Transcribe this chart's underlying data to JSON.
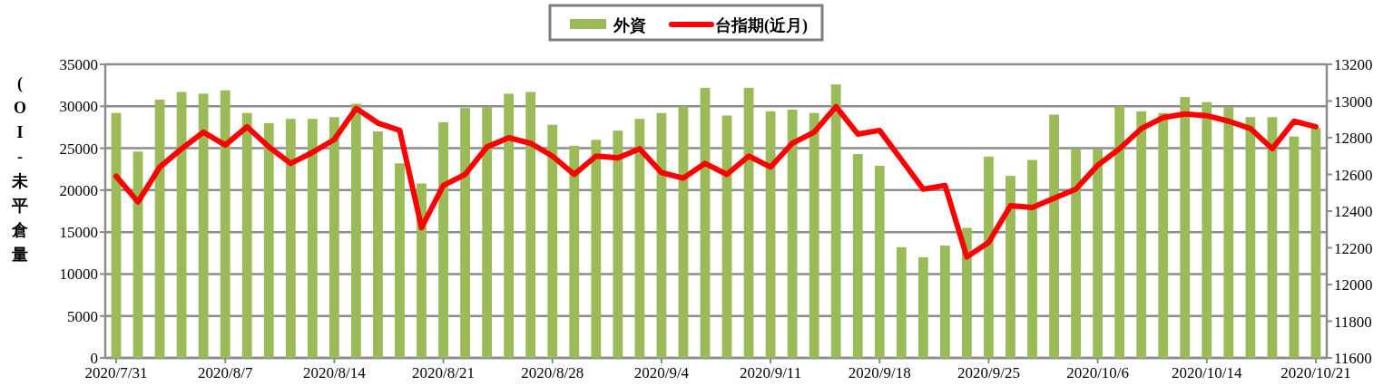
{
  "chart_data": {
    "type": "bar",
    "ylabel": "(OI-未平倉量",
    "categories": [
      "2020/7/31",
      null,
      null,
      null,
      null,
      "2020/8/7",
      null,
      null,
      null,
      null,
      "2020/8/14",
      null,
      null,
      null,
      null,
      "2020/8/21",
      null,
      null,
      null,
      null,
      "2020/8/28",
      null,
      null,
      null,
      null,
      "2020/9/4",
      null,
      null,
      null,
      null,
      "2020/9/11",
      null,
      null,
      null,
      null,
      "2020/9/18",
      null,
      null,
      null,
      null,
      "2020/9/25",
      null,
      null,
      null,
      null,
      "2020/10/6",
      null,
      null,
      null,
      null,
      "2020/10/14",
      null,
      null,
      null,
      null,
      "2020/10/21"
    ],
    "series": [
      {
        "name": "外資",
        "color": "#9bbb59",
        "values": [
          29200,
          24600,
          30800,
          31700,
          31500,
          31900,
          29200,
          28000,
          28500,
          28500,
          28700,
          30300,
          27000,
          23200,
          20800,
          28100,
          29800,
          29900,
          31500,
          31700,
          27800,
          25300,
          26000,
          27100,
          28500,
          29200,
          30000,
          32200,
          28900,
          32200,
          29400,
          29600,
          29200,
          32600,
          24300,
          22900,
          13200,
          12000,
          13400,
          15500,
          24000,
          21700,
          23600,
          29000,
          24900,
          24900,
          30000,
          29400,
          29200,
          31100,
          30500,
          29900,
          28700,
          28700,
          26400,
          27400
        ]
      },
      {
        "name": "台指期(近月)",
        "type": "line",
        "axis": "y2",
        "color": "#ff0000",
        "values": [
          12590,
          12450,
          12640,
          12740,
          12830,
          12760,
          12860,
          12750,
          12660,
          12720,
          12790,
          12960,
          12880,
          12840,
          12310,
          12540,
          12600,
          12750,
          12800,
          12770,
          12700,
          12600,
          12700,
          12690,
          12740,
          12610,
          12580,
          12660,
          12600,
          12700,
          12640,
          12770,
          12830,
          12970,
          12820,
          12840,
          12680,
          12520,
          12540,
          12150,
          12230,
          12430,
          12420,
          12470,
          12520,
          12650,
          12740,
          12850,
          12910,
          12930,
          12920,
          12890,
          12850,
          12740,
          12890,
          12860
        ]
      }
    ],
    "ylim": [
      0,
      35000
    ],
    "yticks": [
      0,
      5000,
      10000,
      15000,
      20000,
      25000,
      30000,
      35000
    ],
    "y2lim": [
      11600,
      13200
    ],
    "y2ticks": [
      11600,
      11800,
      12000,
      12200,
      12400,
      12600,
      12800,
      13000,
      13200
    ],
    "grid": "y",
    "legend": "top"
  }
}
